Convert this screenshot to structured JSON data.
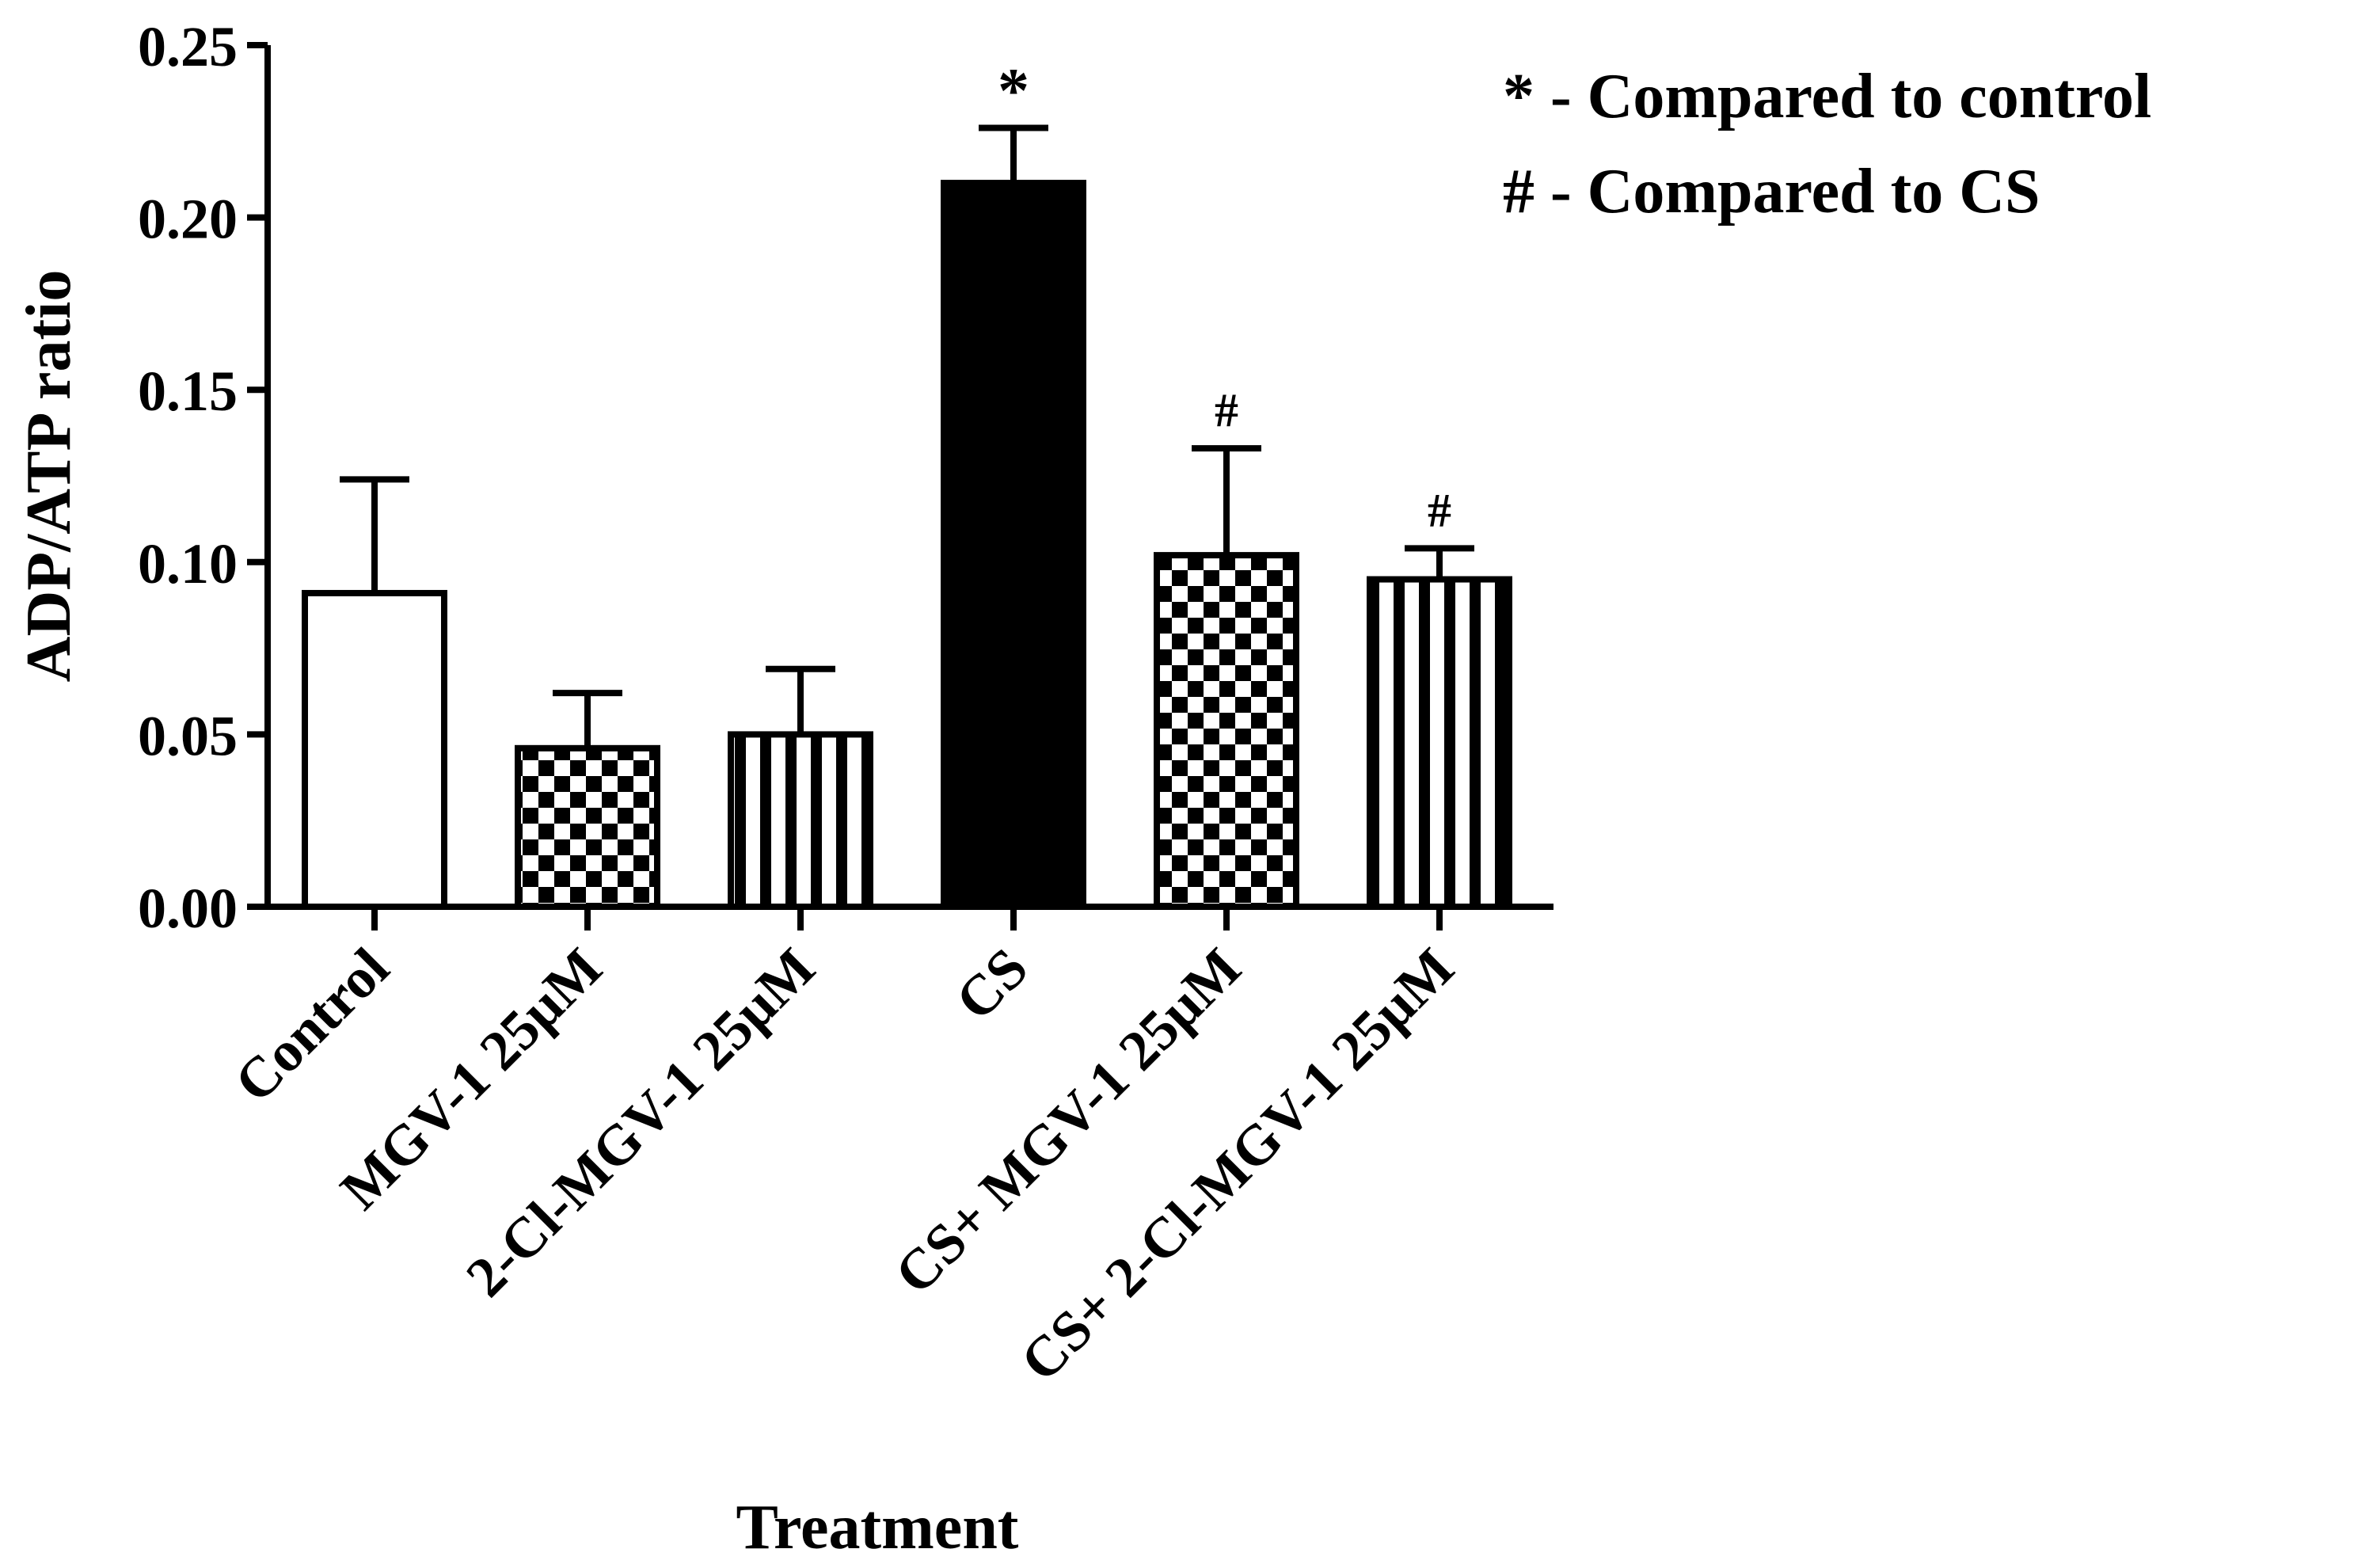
{
  "chart_data": {
    "type": "bar",
    "title": "",
    "xlabel": "Treatment",
    "ylabel": "ADP/ATP ratio",
    "ylim": [
      0,
      0.25
    ],
    "yticks": [
      "0.00",
      "0.05",
      "0.10",
      "0.15",
      "0.20",
      "0.25"
    ],
    "grid": false,
    "categories": [
      "Control",
      "MGV-1 25µM",
      "2-Cl-MGV-1 25µM",
      "CS",
      "CS+ MGV-1 25µM",
      "CS+ 2-Cl-MGV-1 25µM"
    ],
    "values": [
      0.091,
      0.046,
      0.05,
      0.21,
      0.102,
      0.095
    ],
    "errors": [
      0.033,
      0.016,
      0.019,
      0.016,
      0.031,
      0.009
    ],
    "fills": [
      "white",
      "checker",
      "stripes",
      "black",
      "checker",
      "stripes"
    ],
    "significance": [
      "",
      "",
      "",
      "*",
      "#",
      "#"
    ],
    "legend": {
      "position": "top-right",
      "entries": [
        "* - Compared to control",
        "# - Compared to CS"
      ]
    }
  }
}
